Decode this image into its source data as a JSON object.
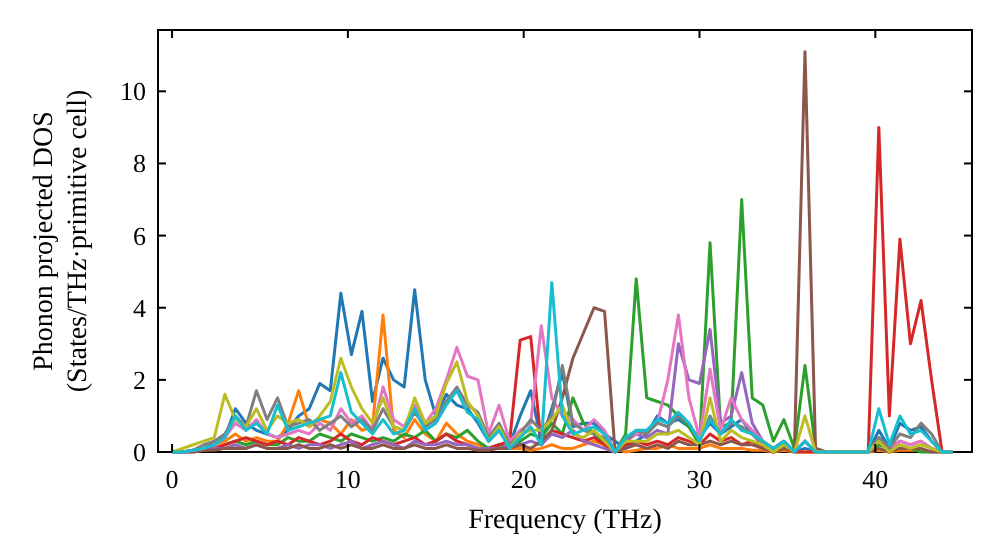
{
  "chart_data": {
    "type": "line",
    "xlabel": "Frequency (THz)",
    "ylabel": "Phonon projected DOS\n(States/THz·primitive cell)",
    "xlim": [
      -0.8,
      45.5
    ],
    "ylim": [
      0,
      11.7
    ],
    "xticks": [
      0,
      10,
      20,
      30,
      40
    ],
    "yticks": [
      0,
      2,
      4,
      6,
      8,
      10
    ],
    "x": [
      0,
      0.6,
      1.2,
      1.8,
      2.4,
      3,
      3.6,
      4.2,
      4.8,
      5.4,
      6,
      6.6,
      7.2,
      7.8,
      8.4,
      9,
      9.6,
      10.2,
      10.8,
      11.4,
      12,
      12.6,
      13.2,
      13.8,
      14.4,
      15,
      15.6,
      16.2,
      16.8,
      17.4,
      18,
      18.6,
      19.2,
      19.8,
      20.4,
      21,
      21.6,
      22.2,
      22.8,
      23.4,
      24,
      24.6,
      25.2,
      25.8,
      26.4,
      27,
      27.6,
      28.2,
      28.8,
      29.4,
      30,
      30.6,
      31.2,
      31.8,
      32.4,
      33,
      33.6,
      34.2,
      34.8,
      35.4,
      36,
      36.6,
      37.2,
      37.8,
      38.4,
      39,
      39.6,
      40.2,
      40.8,
      41.4,
      42,
      42.6,
      43.2,
      43.8,
      44.4
    ],
    "series": [
      {
        "color": "#1f77b4",
        "values": [
          0,
          0,
          0.05,
          0.1,
          0.3,
          0.4,
          1.2,
          0.8,
          0.6,
          0.5,
          0.4,
          0.6,
          1.0,
          1.2,
          1.9,
          1.7,
          4.4,
          2.7,
          3.9,
          1.4,
          2.6,
          2.0,
          1.8,
          4.5,
          2.0,
          1.0,
          1.6,
          1.3,
          1.2,
          0.8,
          0.3,
          0.6,
          0.2,
          1.0,
          1.7,
          0.3,
          1.2,
          2.2,
          0.7,
          0.8,
          0.8,
          0.5,
          0.3,
          0.1,
          0.3,
          0.5,
          1.0,
          0.8,
          0.9,
          0.7,
          0.4,
          0.8,
          0.5,
          0.7,
          0.9,
          0.5,
          0.2,
          0.1,
          0.3,
          0,
          0.1,
          0,
          0,
          0,
          0,
          0,
          0,
          0.6,
          0.1,
          0.8,
          0.6,
          0.7,
          0.3,
          0,
          0
        ]
      },
      {
        "color": "#ff7f0e",
        "values": [
          null,
          null,
          null,
          0.1,
          0.2,
          0.3,
          0.5,
          0.3,
          0.4,
          0.3,
          0.3,
          0.8,
          1.7,
          0.7,
          0.9,
          0.8,
          0.5,
          0.9,
          0.6,
          0.7,
          3.8,
          0.6,
          0.4,
          0.9,
          0.5,
          0.3,
          0.8,
          0.5,
          0.3,
          0.2,
          0.1,
          0.2,
          0.1,
          0.1,
          0.05,
          0.1,
          0.2,
          0.1,
          0.1,
          0.2,
          0.3,
          0.2,
          0.1,
          0,
          0.05,
          0.1,
          0.1,
          0.2,
          0.1,
          0.1,
          0.1,
          0.2,
          0.1,
          0.1,
          0.1,
          0.05,
          0.05,
          0,
          0.05,
          0,
          0,
          0,
          0,
          0,
          0,
          0,
          0,
          0.05,
          0,
          0.05,
          0.05,
          0.05,
          0,
          null,
          null
        ]
      },
      {
        "color": "#2ca02c",
        "values": [
          0,
          0,
          0.05,
          0.1,
          0.1,
          0.2,
          0.3,
          0.2,
          0.3,
          0.2,
          0.2,
          0.4,
          0.3,
          0.3,
          0.5,
          0.4,
          0.3,
          0.5,
          0.4,
          0.3,
          0.4,
          0.3,
          0.5,
          0.4,
          0.6,
          0.3,
          0.5,
          0.4,
          0.6,
          0.3,
          0.1,
          0.2,
          0.1,
          0.3,
          0.5,
          0.4,
          0.8,
          0.5,
          1.5,
          0.8,
          0.5,
          0.2,
          0,
          0.5,
          4.8,
          1.5,
          1.4,
          1.3,
          1.0,
          0.7,
          0.2,
          5.8,
          0.7,
          0.8,
          7.0,
          1.5,
          1.3,
          0.3,
          0.9,
          0.1,
          2.4,
          0.1,
          0,
          0,
          0,
          0,
          0,
          0.2,
          0.1,
          0.1,
          0.1,
          0,
          0,
          0,
          0
        ]
      },
      {
        "color": "#d62728",
        "values": [
          null,
          null,
          null,
          0.1,
          0.1,
          0.2,
          0.3,
          0.4,
          0.3,
          0.2,
          0.3,
          0.2,
          0.4,
          0.3,
          0.2,
          0.3,
          0.5,
          0.3,
          0.2,
          0.4,
          0.3,
          0.2,
          0.3,
          0.4,
          0.2,
          0.3,
          0.5,
          0.3,
          0.2,
          0.1,
          0.1,
          0.2,
          0.3,
          3.1,
          3.2,
          0.2,
          0.6,
          0.5,
          0.4,
          0.3,
          0.4,
          0.2,
          0,
          0.2,
          0.3,
          0.2,
          0.3,
          0.2,
          0.4,
          0.3,
          0.2,
          0.5,
          0.3,
          0.4,
          0.2,
          0.3,
          0.1,
          0,
          0.1,
          0,
          0,
          0,
          0,
          0,
          0,
          0,
          0,
          9.0,
          1.0,
          5.9,
          3.0,
          4.2,
          2.0,
          0,
          0
        ]
      },
      {
        "color": "#9467bd",
        "values": [
          0,
          0,
          0,
          0.05,
          0.1,
          0.1,
          0.2,
          0.1,
          0.2,
          0.1,
          0.1,
          0.2,
          0.1,
          0.2,
          0.2,
          0.1,
          0.2,
          0.3,
          0.1,
          0.2,
          0.3,
          0.2,
          0.1,
          0.3,
          0.2,
          0.2,
          0.3,
          0.2,
          0.2,
          0.1,
          0.1,
          0.1,
          0.2,
          0.2,
          0.3,
          0.2,
          0.5,
          0.4,
          0.6,
          0.3,
          0.2,
          0.1,
          0,
          0.3,
          0.5,
          0.4,
          0.6,
          0.5,
          3.0,
          2.0,
          1.9,
          3.4,
          0.8,
          1.0,
          2.2,
          0.8,
          0.3,
          0.1,
          0.2,
          0,
          0.3,
          0,
          0,
          0,
          0,
          0,
          0,
          0.4,
          0.1,
          0.3,
          0.2,
          0.3,
          0.1,
          0,
          0
        ]
      },
      {
        "color": "#8c564b",
        "values": [
          0,
          0,
          0,
          0.05,
          0.05,
          0.1,
          0.1,
          0.1,
          0.2,
          0.1,
          0.1,
          0.1,
          0.2,
          0.1,
          0.1,
          0.2,
          0.1,
          0.2,
          0.1,
          0.1,
          0.2,
          0.1,
          0.1,
          0.2,
          0.1,
          0.1,
          0.2,
          0.1,
          0.1,
          0.05,
          0.05,
          0.1,
          0.1,
          0.2,
          0.1,
          0.3,
          0.6,
          1.5,
          2.6,
          3.3,
          4.0,
          3.9,
          0,
          0.1,
          0.2,
          0.1,
          0.2,
          0.1,
          0.3,
          0.2,
          0.2,
          0.3,
          0.2,
          0.3,
          0.2,
          0.2,
          0.1,
          0,
          0.1,
          0.1,
          11.1,
          0.1,
          0,
          0,
          0,
          0,
          0,
          0.1,
          0,
          0.1,
          0.1,
          0.1,
          0,
          0,
          0
        ]
      },
      {
        "color": "#e377c2",
        "values": [
          0,
          0,
          0.05,
          0.1,
          0.2,
          0.4,
          0.8,
          0.6,
          0.9,
          0.5,
          0.4,
          0.5,
          0.6,
          0.5,
          0.8,
          0.6,
          1.2,
          0.8,
          1.0,
          0.6,
          1.8,
          0.9,
          0.7,
          1.3,
          0.8,
          1.2,
          2.0,
          2.9,
          2.1,
          2.0,
          0.5,
          1.3,
          0.3,
          0.6,
          0.8,
          3.5,
          1.5,
          1.0,
          0.9,
          0.6,
          0.9,
          0.6,
          0,
          0.4,
          0.5,
          0.6,
          0.8,
          2.0,
          3.8,
          1.5,
          0.4,
          2.3,
          0.6,
          1.5,
          0.9,
          0.6,
          0.3,
          0.1,
          0.3,
          0,
          0.3,
          0,
          0,
          0,
          0,
          0,
          0,
          0.3,
          0.1,
          0.3,
          0.2,
          0.3,
          0.1,
          0,
          0
        ]
      },
      {
        "color": "#7f7f7f",
        "values": [
          0,
          0,
          0.05,
          0.2,
          0.3,
          0.5,
          1.0,
          0.7,
          1.7,
          0.9,
          1.5,
          0.7,
          0.8,
          0.9,
          0.6,
          0.8,
          1.0,
          0.7,
          0.9,
          0.6,
          1.2,
          0.7,
          0.6,
          1.1,
          0.7,
          0.9,
          1.4,
          1.8,
          1.3,
          1.1,
          0.4,
          0.8,
          0.2,
          0.5,
          0.9,
          0.6,
          1.0,
          2.4,
          0.8,
          0.6,
          0.5,
          0.4,
          0,
          0.3,
          0.6,
          0.5,
          0.8,
          0.7,
          1.0,
          0.8,
          0.3,
          1.0,
          0.5,
          0.8,
          0.7,
          0.5,
          0.2,
          0.1,
          0.3,
          0,
          0.3,
          0,
          0,
          0,
          0,
          0,
          0,
          0.4,
          0.1,
          0.5,
          0.4,
          0.8,
          0.5,
          0,
          0
        ]
      },
      {
        "color": "#bcbd22",
        "values": [
          0,
          0.1,
          0.2,
          0.3,
          0.4,
          1.6,
          0.9,
          0.7,
          1.2,
          0.6,
          1.0,
          0.8,
          0.9,
          0.7,
          1.0,
          1.4,
          2.6,
          1.8,
          1.2,
          0.8,
          1.5,
          0.7,
          0.6,
          1.5,
          0.8,
          1.0,
          1.9,
          2.5,
          1.4,
          1.0,
          0.3,
          0.7,
          0.1,
          0.5,
          0.6,
          0.6,
          0.9,
          1.3,
          0.5,
          0.4,
          0.6,
          0.3,
          0,
          0.3,
          0.3,
          0.3,
          0.5,
          0.5,
          0.6,
          0.4,
          0.2,
          1.5,
          0.3,
          0.6,
          0.4,
          0.3,
          0.2,
          0,
          0.2,
          0,
          1.0,
          0,
          0,
          0,
          0,
          0,
          0,
          0.3,
          0,
          0.2,
          0.1,
          0.2,
          0.1,
          0,
          0
        ]
      },
      {
        "color": "#17becf",
        "values": [
          0,
          0,
          0.05,
          0.1,
          0.2,
          0.4,
          1.0,
          0.6,
          0.8,
          0.5,
          1.3,
          0.6,
          0.7,
          0.8,
          0.9,
          1.0,
          2.2,
          1.1,
          0.8,
          0.5,
          0.9,
          0.5,
          0.6,
          1.2,
          0.6,
          0.8,
          1.3,
          1.7,
          1.1,
          0.9,
          0.3,
          0.6,
          0.1,
          0.4,
          0.7,
          0.2,
          4.7,
          1.0,
          0.5,
          0.6,
          0.7,
          0.5,
          0,
          0.4,
          0.6,
          0.6,
          0.9,
          0.8,
          1.1,
          0.8,
          0.3,
          0.9,
          0.5,
          0.9,
          0.6,
          0.5,
          0.3,
          0.1,
          0.3,
          0,
          0.3,
          0,
          0,
          0,
          0,
          0,
          0,
          1.2,
          0.2,
          1.0,
          0.5,
          0.6,
          0.3,
          0,
          0
        ]
      }
    ]
  }
}
